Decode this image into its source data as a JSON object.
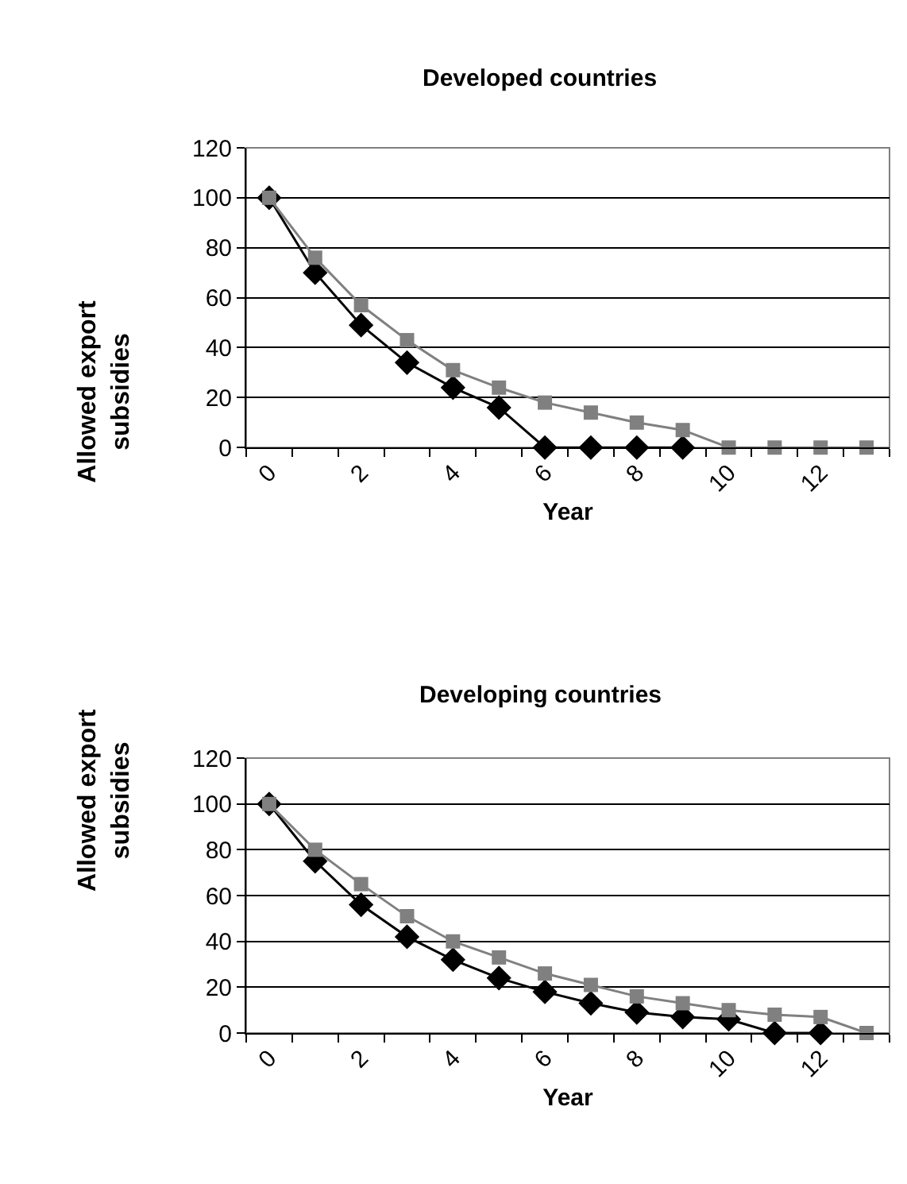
{
  "chart_data": [
    {
      "type": "line",
      "title": "Developed countries",
      "xlabel": "Year",
      "ylabel": "Allowed export subsidies",
      "categories": [
        "0",
        null,
        "2",
        null,
        "4",
        null,
        "6",
        null,
        "8",
        null,
        "10",
        null,
        "12",
        null
      ],
      "series": [
        {
          "color": "#000000",
          "marker": "diamond",
          "values": [
            100,
            70,
            49,
            34,
            24,
            16,
            0,
            0,
            0,
            0,
            null,
            null,
            null,
            null
          ]
        },
        {
          "color": "#808080",
          "marker": "square",
          "values": [
            100,
            76,
            57,
            43,
            31,
            24,
            18,
            14,
            10,
            7,
            0,
            0,
            0,
            0
          ]
        }
      ],
      "ylim": [
        0,
        120
      ],
      "yticks": [
        0,
        20,
        40,
        60,
        80,
        100,
        120
      ],
      "grid": "y"
    },
    {
      "type": "line",
      "title": "Developing countries",
      "xlabel": "Year",
      "ylabel": "Allowed export subsidies",
      "categories": [
        "0",
        null,
        "2",
        null,
        "4",
        null,
        "6",
        null,
        "8",
        null,
        "10",
        null,
        "12",
        null
      ],
      "series": [
        {
          "color": "#000000",
          "marker": "diamond",
          "values": [
            100,
            75,
            56,
            42,
            32,
            24,
            18,
            13,
            9,
            7,
            6,
            0,
            0,
            null
          ]
        },
        {
          "color": "#808080",
          "marker": "square",
          "values": [
            100,
            80,
            65,
            51,
            40,
            33,
            26,
            21,
            16,
            13,
            10,
            8,
            7,
            0
          ]
        }
      ],
      "ylim": [
        0,
        120
      ],
      "yticks": [
        0,
        20,
        40,
        60,
        80,
        100,
        120
      ],
      "grid": "y"
    }
  ]
}
